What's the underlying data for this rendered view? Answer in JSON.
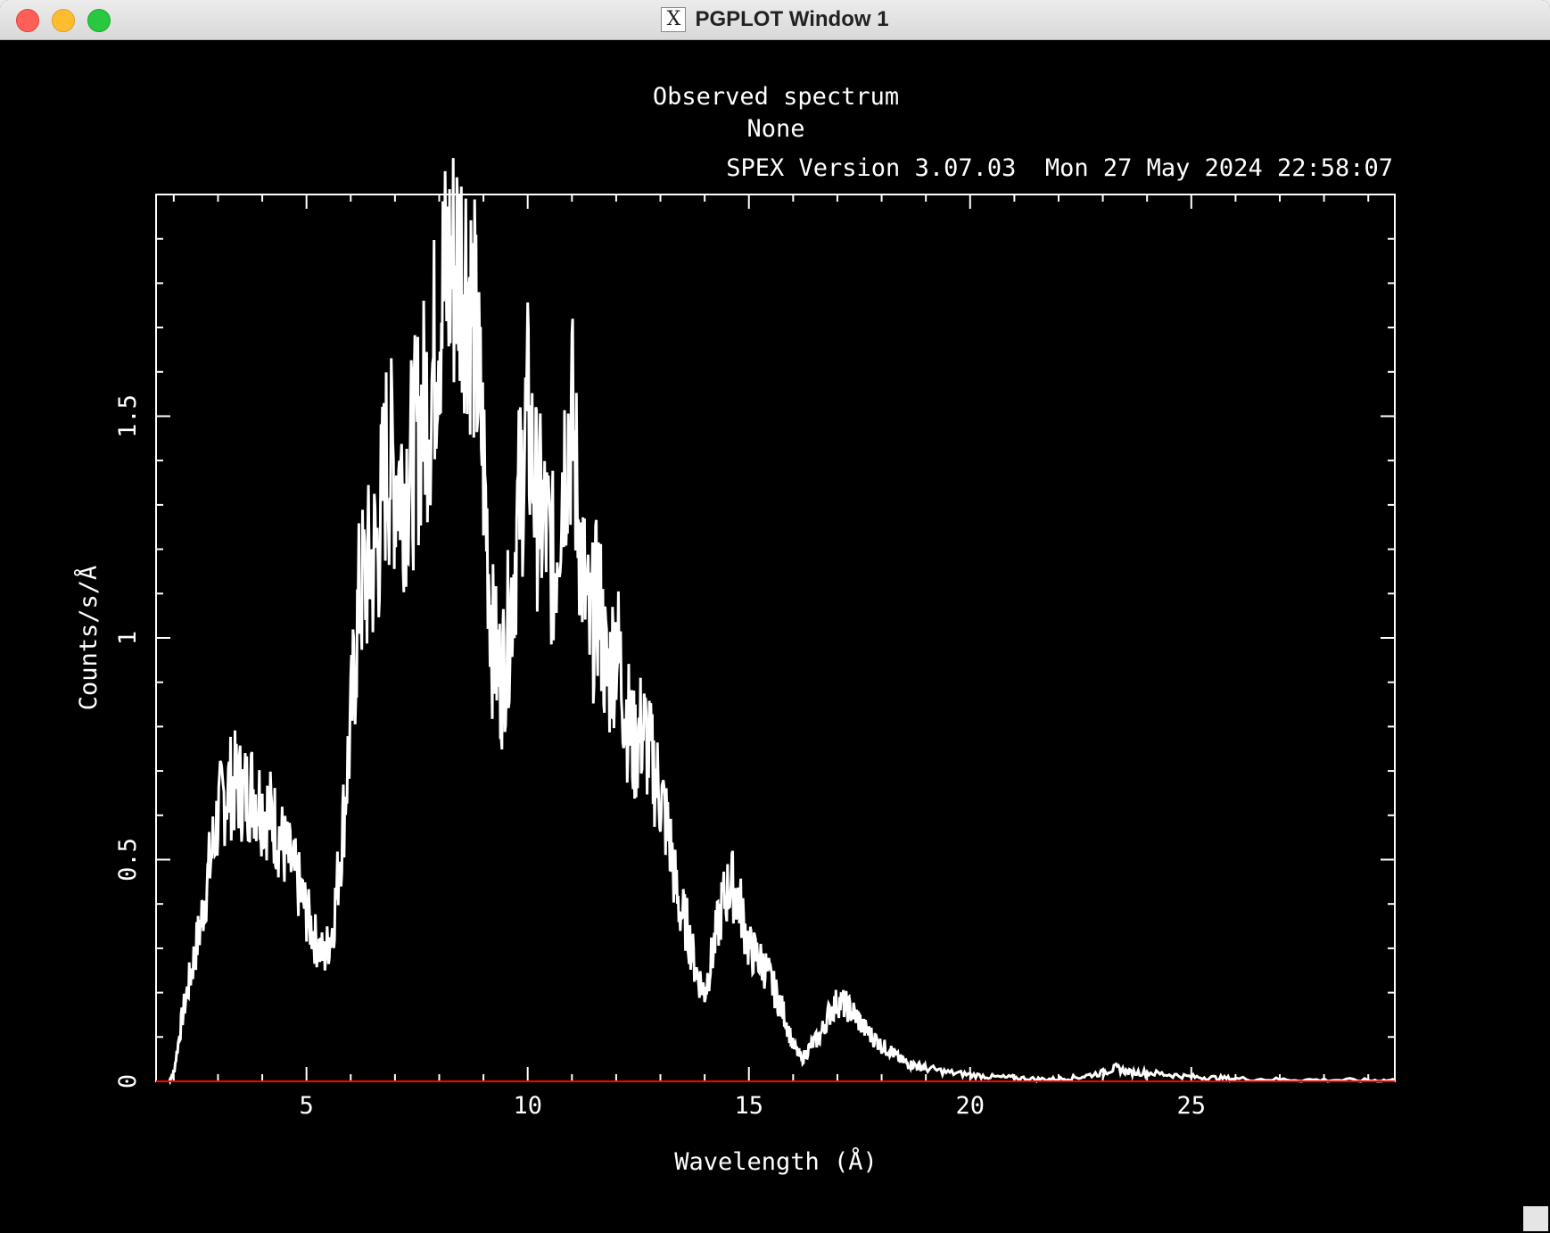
{
  "window": {
    "title": "PGPLOT Window 1",
    "icon": "x11-icon"
  },
  "chart_data": {
    "type": "line",
    "title": "Observed spectrum",
    "subtitle": "None",
    "version_line": "SPEX Version 3.07.03  Mon 27 May 2024 22:58:07",
    "xlabel": "Wavelength (Å)",
    "ylabel": "Counts/s/Å",
    "xlim": [
      1.6,
      29.6
    ],
    "ylim": [
      0,
      2.0
    ],
    "xticks": [
      5,
      10,
      15,
      20,
      25
    ],
    "xtick_labels": [
      "5",
      "10",
      "15",
      "20",
      "25"
    ],
    "yticks": [
      0,
      0.5,
      1,
      1.5
    ],
    "ytick_labels": [
      "0",
      "0.5",
      "1",
      "1.5"
    ],
    "colors": {
      "data": "#ffffff",
      "baseline": "#ff0000",
      "axes": "#ffffff"
    },
    "series": [
      {
        "x": [
          1.9,
          2.0,
          2.2,
          2.4,
          2.6,
          2.8,
          3.0,
          3.2,
          3.4,
          3.6,
          3.8,
          4.0,
          4.2,
          4.4,
          4.6,
          4.8,
          5.0,
          5.2,
          5.4,
          5.6,
          5.8,
          6.0,
          6.2,
          6.4,
          6.6,
          6.8,
          7.0,
          7.2,
          7.4,
          7.6,
          7.8,
          8.0,
          8.2,
          8.4,
          8.6,
          8.8,
          9.0,
          9.2,
          9.4,
          9.6,
          9.8,
          10.0,
          10.2,
          10.4,
          10.6,
          10.8,
          11.0,
          11.2,
          11.4,
          11.6,
          11.8,
          12.0,
          12.2,
          12.4,
          12.6,
          12.8,
          13.0,
          13.2,
          13.4,
          13.6,
          13.8,
          14.0,
          14.2,
          14.4,
          14.6,
          14.8,
          15.0,
          15.2,
          15.4,
          15.6,
          15.8,
          16.0,
          16.2,
          16.4,
          16.6,
          16.8,
          17.0,
          17.2,
          17.4,
          17.6,
          17.8,
          18.0,
          18.2,
          18.4,
          18.6,
          18.8,
          19.0,
          19.5,
          20.0,
          20.5,
          21.0,
          21.5,
          22.0,
          22.5,
          23.0,
          23.3,
          23.6,
          24.0,
          24.5,
          25.0,
          25.5,
          26.0,
          27.0,
          28.0,
          29.0,
          29.6
        ],
        "y": [
          0.0,
          0.02,
          0.15,
          0.25,
          0.35,
          0.48,
          0.6,
          0.66,
          0.67,
          0.65,
          0.66,
          0.62,
          0.6,
          0.55,
          0.5,
          0.45,
          0.38,
          0.32,
          0.28,
          0.35,
          0.55,
          0.8,
          1.1,
          1.15,
          1.2,
          1.4,
          1.38,
          1.35,
          1.4,
          1.5,
          1.55,
          1.75,
          1.82,
          1.85,
          1.84,
          1.7,
          1.4,
          1.0,
          0.9,
          1.05,
          1.3,
          1.5,
          1.3,
          1.25,
          1.15,
          1.4,
          1.5,
          1.2,
          1.0,
          1.1,
          0.9,
          1.0,
          0.85,
          0.75,
          0.8,
          0.72,
          0.65,
          0.55,
          0.4,
          0.35,
          0.25,
          0.2,
          0.3,
          0.4,
          0.45,
          0.4,
          0.3,
          0.28,
          0.25,
          0.2,
          0.15,
          0.08,
          0.05,
          0.08,
          0.1,
          0.15,
          0.18,
          0.17,
          0.15,
          0.12,
          0.1,
          0.08,
          0.07,
          0.05,
          0.04,
          0.035,
          0.03,
          0.02,
          0.015,
          0.01,
          0.008,
          0.005,
          0.005,
          0.01,
          0.02,
          0.03,
          0.02,
          0.02,
          0.015,
          0.01,
          0.008,
          0.006,
          0.004,
          0.003,
          0.002,
          0.002
        ]
      }
    ]
  }
}
